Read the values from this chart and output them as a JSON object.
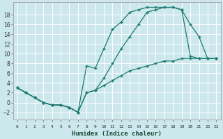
{
  "xlabel": "Humidex (Indice chaleur)",
  "background_color": "#cce8ec",
  "grid_color": "#ffffff",
  "line_color": "#1a7a6e",
  "xlim": [
    -0.5,
    23.5
  ],
  "ylim": [
    -3.5,
    20.5
  ],
  "yticks": [
    -2,
    0,
    2,
    4,
    6,
    8,
    10,
    12,
    14,
    16,
    18
  ],
  "xtick_labels": [
    "0",
    "1",
    "2",
    "3",
    "4",
    "5",
    "6",
    "7",
    "8",
    "9",
    "10",
    "11",
    "12",
    "13",
    "14",
    "15",
    "16",
    "17",
    "18",
    "19",
    "20",
    "21",
    "22",
    "23"
  ],
  "curve1_x": [
    0,
    1,
    2,
    3,
    4,
    5,
    6,
    7,
    8,
    9,
    10,
    11,
    12,
    13,
    14,
    15,
    16,
    17,
    18,
    19,
    20,
    21,
    22,
    23
  ],
  "curve1_y": [
    3,
    2,
    1,
    0,
    -0.5,
    -0.5,
    -1,
    -2,
    2.0,
    2.5,
    5,
    8,
    11,
    13.5,
    16,
    18.5,
    19,
    19.5,
    19.5,
    19,
    16,
    13.5,
    9,
    9
  ],
  "curve2_x": [
    0,
    1,
    2,
    3,
    4,
    5,
    6,
    7,
    8,
    9,
    10,
    11,
    12,
    13,
    14,
    15,
    16,
    17,
    18,
    19,
    20,
    21,
    22,
    23
  ],
  "curve2_y": [
    3,
    2,
    1,
    0,
    -0.5,
    -0.5,
    -1,
    -2,
    7.5,
    7.0,
    11,
    15,
    16.5,
    18.5,
    19,
    19.5,
    19.5,
    19.5,
    19.5,
    19,
    9.5,
    9,
    9,
    9
  ],
  "curve3_x": [
    0,
    1,
    2,
    3,
    4,
    5,
    6,
    7,
    8,
    9,
    10,
    11,
    12,
    13,
    14,
    15,
    16,
    17,
    18,
    19,
    20,
    21,
    22,
    23
  ],
  "curve3_y": [
    3,
    2,
    1,
    0,
    -0.5,
    -0.5,
    -1,
    -2,
    2,
    2.5,
    3.5,
    4.5,
    5.5,
    6.5,
    7,
    7.5,
    8,
    8.5,
    8.5,
    9,
    9,
    9,
    9,
    9
  ]
}
